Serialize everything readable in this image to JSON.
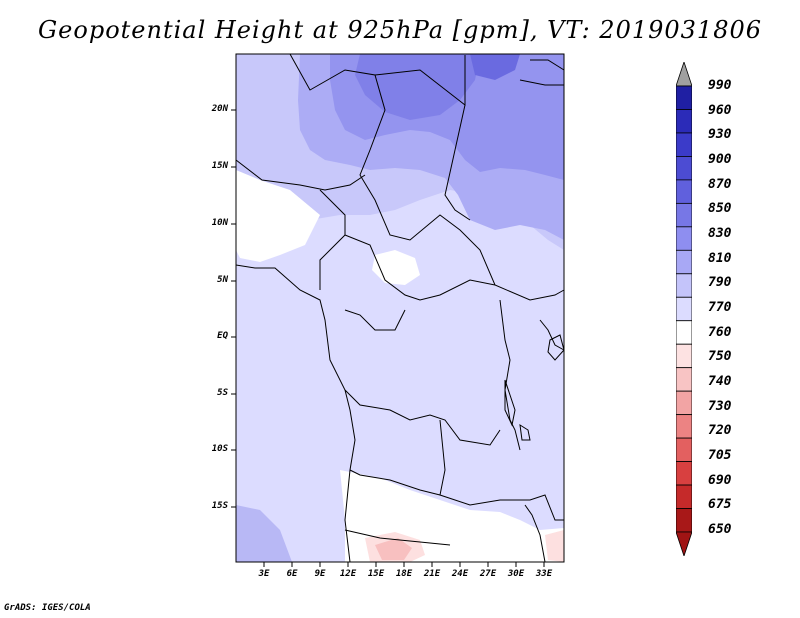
{
  "title": "Geopotential Height at 925hPa [gpm], VT: 2019031806",
  "footer": "GrADS: IGES/COLA",
  "map": {
    "lat_ticks": [
      {
        "label": "20N",
        "lat": 20
      },
      {
        "label": "15N",
        "lat": 15
      },
      {
        "label": "10N",
        "lat": 10
      },
      {
        "label": "5N",
        "lat": 5
      },
      {
        "label": "EQ",
        "lat": 0
      },
      {
        "label": "5S",
        "lat": -5
      },
      {
        "label": "10S",
        "lat": -10
      },
      {
        "label": "15S",
        "lat": -15
      }
    ],
    "lon_ticks": [
      {
        "label": "3E",
        "lon": 3
      },
      {
        "label": "6E",
        "lon": 6
      },
      {
        "label": "9E",
        "lon": 9
      },
      {
        "label": "12E",
        "lon": 12
      },
      {
        "label": "15E",
        "lon": 15
      },
      {
        "label": "18E",
        "lon": 18
      },
      {
        "label": "21E",
        "lon": 21
      },
      {
        "label": "24E",
        "lon": 24
      },
      {
        "label": "27E",
        "lon": 27
      },
      {
        "label": "30E",
        "lon": 30
      },
      {
        "label": "33E",
        "lon": 33
      }
    ]
  },
  "colorbar": {
    "levels": [
      "990",
      "960",
      "930",
      "900",
      "870",
      "850",
      "830",
      "810",
      "790",
      "770",
      "760",
      "750",
      "740",
      "730",
      "720",
      "705",
      "690",
      "675",
      "650"
    ],
    "colors": [
      "#1f1fa3",
      "#2b2bb8",
      "#3b3bc9",
      "#4c4cd3",
      "#6060dd",
      "#7777e6",
      "#8e8ef0",
      "#a8a8f5",
      "#c4c4fa",
      "#dcdcff",
      "#ffffff",
      "#fde2e2",
      "#f8c4c4",
      "#f2a4a4",
      "#ec8383",
      "#e36060",
      "#d84040",
      "#c52a2a",
      "#a81818"
    ],
    "top_arrow_color": "#a0a0a0",
    "bottom_arrow_color": "#a01414"
  }
}
